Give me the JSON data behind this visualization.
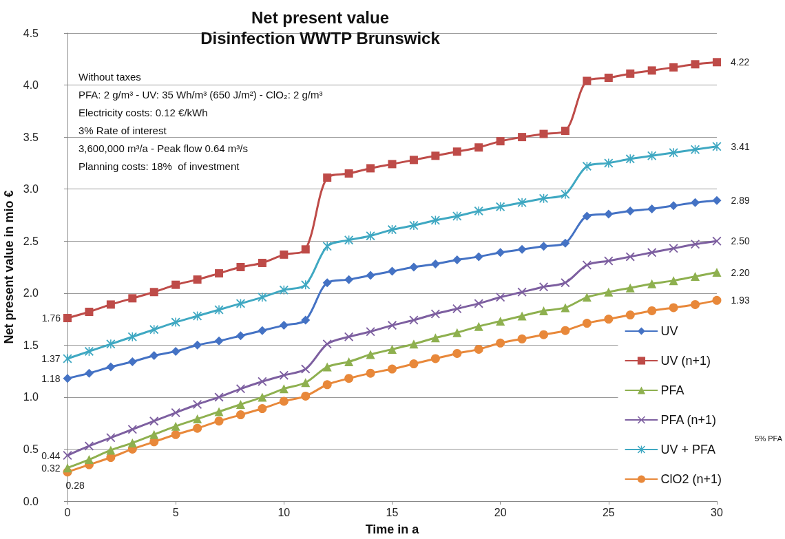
{
  "chart_data": {
    "type": "line",
    "title": "Net present value",
    "subtitle": "Disinfection WWTP Brunswick",
    "xlabel": "Time in a",
    "ylabel": "Net present value in mio €",
    "x": [
      0,
      1,
      2,
      3,
      4,
      5,
      6,
      7,
      8,
      9,
      10,
      11,
      12,
      13,
      14,
      15,
      16,
      17,
      18,
      19,
      20,
      21,
      22,
      23,
      24,
      25,
      26,
      27,
      28,
      29,
      30
    ],
    "series": [
      {
        "name": "UV",
        "color": "#4472c4",
        "marker": "diamond",
        "values": [
          1.18,
          1.23,
          1.29,
          1.34,
          1.4,
          1.44,
          1.5,
          1.54,
          1.59,
          1.64,
          1.69,
          1.74,
          2.1,
          2.13,
          2.17,
          2.21,
          2.25,
          2.28,
          2.32,
          2.35,
          2.39,
          2.42,
          2.45,
          2.48,
          2.74,
          2.76,
          2.79,
          2.81,
          2.84,
          2.87,
          2.89
        ],
        "value_labels": [
          "1.18",
          null,
          null,
          null,
          null,
          null,
          null,
          null,
          null,
          null,
          null,
          null,
          null,
          null,
          null,
          null,
          null,
          null,
          null,
          null,
          null,
          null,
          null,
          null,
          null,
          null,
          null,
          null,
          null,
          null,
          "2.89"
        ]
      },
      {
        "name": "UV (n+1)",
        "color": "#be4b48",
        "marker": "square",
        "values": [
          1.76,
          1.82,
          1.89,
          1.95,
          2.01,
          2.08,
          2.13,
          2.19,
          2.25,
          2.29,
          2.37,
          2.42,
          3.11,
          3.15,
          3.2,
          3.24,
          3.28,
          3.32,
          3.36,
          3.4,
          3.46,
          3.5,
          3.53,
          3.56,
          4.04,
          4.07,
          4.11,
          4.14,
          4.17,
          4.2,
          4.22
        ],
        "value_labels": [
          "1.76",
          null,
          null,
          null,
          null,
          null,
          null,
          null,
          null,
          null,
          null,
          null,
          null,
          null,
          null,
          null,
          null,
          null,
          null,
          null,
          null,
          null,
          null,
          null,
          null,
          null,
          null,
          null,
          null,
          null,
          "4.22"
        ]
      },
      {
        "name": "PFA",
        "color": "#8eb04f",
        "marker": "triangle",
        "values": [
          0.32,
          0.4,
          0.49,
          0.56,
          0.64,
          0.72,
          0.79,
          0.86,
          0.93,
          1.0,
          1.08,
          1.14,
          1.29,
          1.34,
          1.41,
          1.46,
          1.51,
          1.57,
          1.62,
          1.68,
          1.73,
          1.78,
          1.83,
          1.86,
          1.96,
          2.01,
          2.05,
          2.09,
          2.12,
          2.16,
          2.2
        ],
        "value_labels": [
          "0.32",
          null,
          null,
          null,
          null,
          null,
          null,
          null,
          null,
          null,
          null,
          null,
          null,
          null,
          null,
          null,
          null,
          null,
          null,
          null,
          null,
          null,
          null,
          null,
          null,
          null,
          null,
          null,
          null,
          null,
          "2.20"
        ]
      },
      {
        "name": "PFA (n+1)",
        "color": "#7d5fa0",
        "marker": "cross",
        "values": [
          0.44,
          0.53,
          0.61,
          0.69,
          0.77,
          0.85,
          0.93,
          1.0,
          1.08,
          1.15,
          1.21,
          1.27,
          1.51,
          1.58,
          1.63,
          1.69,
          1.74,
          1.8,
          1.85,
          1.9,
          1.96,
          2.01,
          2.06,
          2.1,
          2.27,
          2.31,
          2.35,
          2.39,
          2.43,
          2.47,
          2.5
        ],
        "value_labels": [
          "0.44",
          null,
          null,
          null,
          null,
          null,
          null,
          null,
          null,
          null,
          null,
          null,
          null,
          null,
          null,
          null,
          null,
          null,
          null,
          null,
          null,
          null,
          null,
          null,
          null,
          null,
          null,
          null,
          null,
          null,
          "2.50"
        ]
      },
      {
        "name": "UV + PFA",
        "color": "#3fa8c2",
        "marker": "star",
        "values": [
          1.37,
          1.44,
          1.51,
          1.58,
          1.65,
          1.72,
          1.78,
          1.84,
          1.9,
          1.96,
          2.03,
          2.08,
          2.45,
          2.51,
          2.55,
          2.61,
          2.65,
          2.7,
          2.74,
          2.79,
          2.83,
          2.87,
          2.91,
          2.95,
          3.22,
          3.25,
          3.29,
          3.32,
          3.35,
          3.38,
          3.41
        ],
        "value_labels": [
          "1.37",
          null,
          null,
          null,
          null,
          null,
          null,
          null,
          null,
          null,
          null,
          null,
          null,
          null,
          null,
          null,
          null,
          null,
          null,
          null,
          null,
          null,
          null,
          null,
          null,
          null,
          null,
          null,
          null,
          null,
          "3.41"
        ]
      },
      {
        "name": "ClO2 (n+1)",
        "color": "#e8883a",
        "marker": "circle",
        "values": [
          0.28,
          0.35,
          0.42,
          0.5,
          0.57,
          0.64,
          0.7,
          0.77,
          0.83,
          0.89,
          0.96,
          1.01,
          1.12,
          1.18,
          1.23,
          1.27,
          1.32,
          1.37,
          1.42,
          1.46,
          1.52,
          1.56,
          1.6,
          1.64,
          1.71,
          1.75,
          1.79,
          1.83,
          1.86,
          1.89,
          1.93
        ],
        "value_labels": [
          "0.28",
          null,
          null,
          null,
          null,
          null,
          null,
          null,
          null,
          null,
          null,
          null,
          null,
          null,
          null,
          null,
          null,
          null,
          null,
          null,
          null,
          null,
          null,
          null,
          null,
          null,
          null,
          null,
          null,
          null,
          "1.93"
        ]
      }
    ],
    "xlim": [
      0,
      30
    ],
    "xticks": [
      0,
      5,
      10,
      15,
      20,
      25,
      30
    ],
    "ylim": [
      0,
      4.5
    ],
    "yticks": [
      {
        "value": 0,
        "label": "0.0"
      },
      0.5,
      {
        "value": 1,
        "label": "1.0"
      },
      1.5,
      {
        "value": 2,
        "label": "2.0"
      },
      2.5,
      {
        "value": 3,
        "label": "3.0"
      },
      3.5,
      {
        "value": 4,
        "label": "4.0"
      },
      4.5
    ],
    "grid": "y",
    "legend": "bottom right",
    "line_style": "solid",
    "annotations": [
      "Without taxes",
      "PFA: 2 g/m³ - UV: 35 Wh/m³ (650 J/m²) - ClO₂: 2 g/m³",
      "Electricity costs: 0.12 €/kWh",
      "3% Rate of interest",
      "3,600,000 m³/a - Peak flow 0.64 m³/s",
      "Planning costs: 18%  of investment",
      "5% PFA"
    ]
  }
}
